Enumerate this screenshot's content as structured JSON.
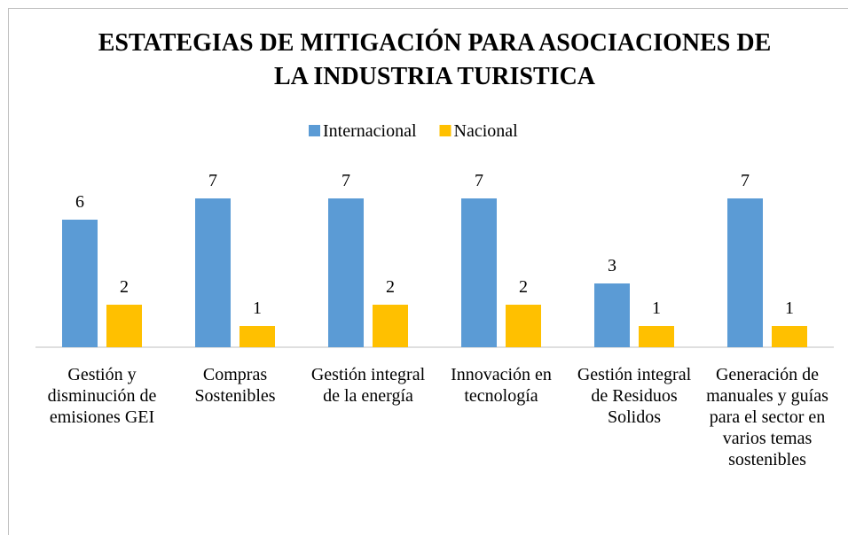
{
  "chart_data": {
    "type": "bar",
    "title": "ESTATEGIAS DE MITIGACIÓN PARA ASOCIACIONES DE LA INDUSTRIA TURISTICA",
    "categories": [
      "Gestión y disminución de emisiones GEI",
      "Compras Sostenibles",
      "Gestión integral de la energía",
      "Innovación en tecnología",
      "Gestión integral de Residuos Solidos",
      "Generación de manuales y guías para el sector en varios temas sostenibles"
    ],
    "series": [
      {
        "name": "Internacional",
        "color": "#5b9bd5",
        "values": [
          6,
          7,
          7,
          7,
          3,
          7
        ]
      },
      {
        "name": "Nacional",
        "color": "#ffc000",
        "values": [
          2,
          1,
          2,
          2,
          1,
          1
        ]
      }
    ],
    "legend": "top"
  }
}
